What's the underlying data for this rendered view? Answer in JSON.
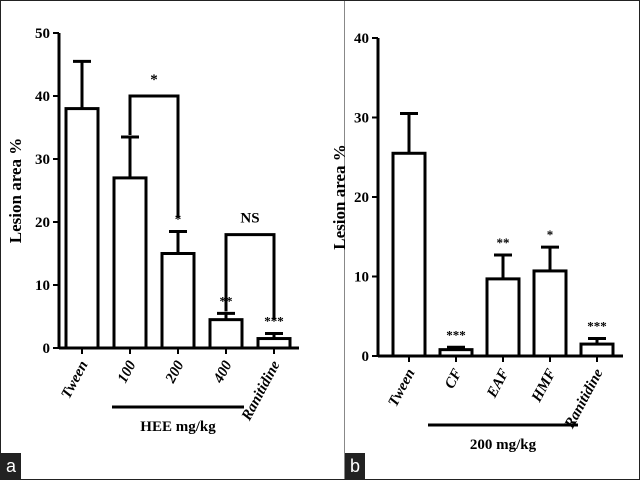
{
  "chart_data": [
    {
      "panel_label": "a",
      "type": "bar",
      "categories": [
        "Tween",
        "100",
        "200",
        "400",
        "Ranitidine"
      ],
      "values": [
        38,
        27,
        15,
        4.5,
        1.5
      ],
      "errors": [
        7.5,
        6.5,
        3.5,
        1,
        0.8
      ],
      "significance": [
        "",
        "",
        "*",
        "**",
        "***"
      ],
      "ylabel": "Lesion area %",
      "ylim": [
        0,
        50
      ],
      "yticks": [
        0,
        10,
        20,
        30,
        40,
        50
      ],
      "group_label": "HEE mg/kg",
      "group_span": [
        1,
        3
      ],
      "comparisons": [
        {
          "from": 1,
          "to": 2,
          "level": 40,
          "label": "*"
        },
        {
          "from": 3,
          "to": 4,
          "level": 18,
          "label": "NS"
        }
      ],
      "grid": false
    },
    {
      "panel_label": "b",
      "type": "bar",
      "categories": [
        "Tween",
        "CF",
        "EAF",
        "HMF",
        "Ranitidine"
      ],
      "values": [
        25.5,
        0.8,
        9.7,
        10.7,
        1.5
      ],
      "errors": [
        5,
        0.3,
        3,
        3,
        0.7
      ],
      "significance": [
        "",
        "***",
        "**",
        "*",
        "***"
      ],
      "ylabel": "Lesion area %",
      "ylim": [
        0,
        40
      ],
      "yticks": [
        0,
        10,
        20,
        30,
        40
      ],
      "group_label": "200 mg/kg",
      "group_span": [
        1,
        3
      ],
      "comparisons": [],
      "grid": false
    }
  ]
}
